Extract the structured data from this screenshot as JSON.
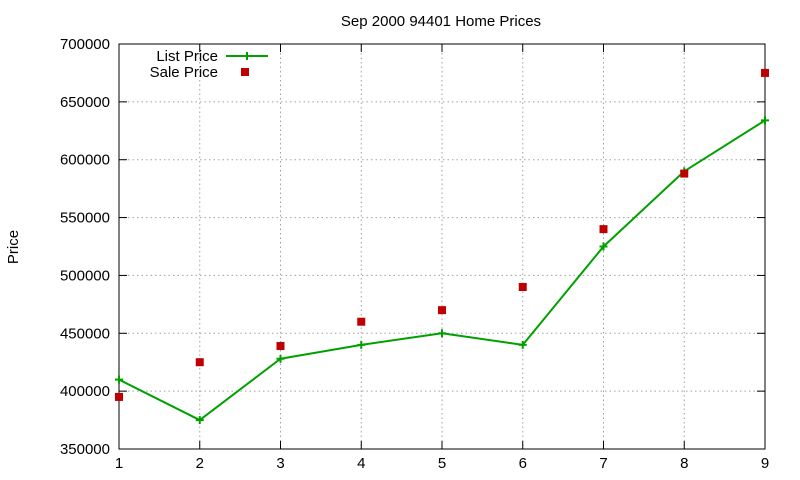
{
  "chart_data": {
    "type": "line",
    "title": "Sep 2000 94401 Home Prices",
    "xlabel": "",
    "ylabel": "Price",
    "x": [
      1,
      2,
      3,
      4,
      5,
      6,
      7,
      8,
      9
    ],
    "xlim": [
      1,
      9
    ],
    "ylim": [
      350000,
      700000
    ],
    "yticks": [
      350000,
      400000,
      450000,
      500000,
      550000,
      600000,
      650000,
      700000
    ],
    "grid": true,
    "legend_position": "top-left",
    "series": [
      {
        "name": "List Price",
        "style": "line+cross",
        "color": "#00a000",
        "values": [
          410000,
          375000,
          428000,
          440000,
          450000,
          440000,
          525000,
          590000,
          634000
        ]
      },
      {
        "name": "Sale Price",
        "style": "square-points",
        "color": "#c00000",
        "values": [
          395000,
          425000,
          439000,
          460000,
          470000,
          490000,
          540000,
          588000,
          675000
        ]
      }
    ]
  }
}
